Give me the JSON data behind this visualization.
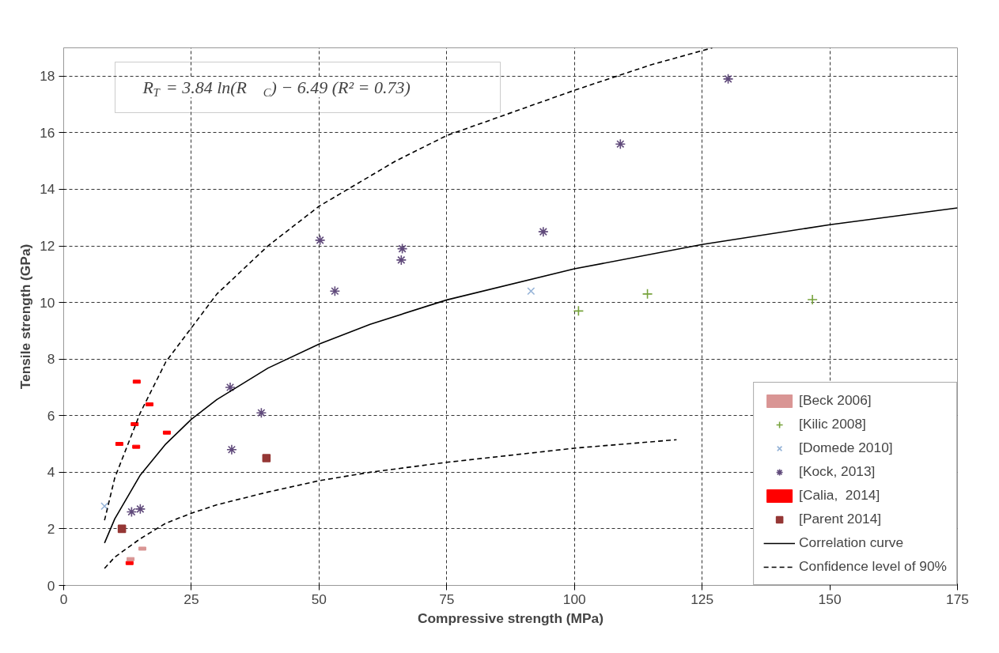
{
  "chart_data": {
    "type": "scatter",
    "xlabel": "Compressive strength (MPa)",
    "ylabel": "Tensile strength (GPa)",
    "xlim": [
      0,
      175
    ],
    "ylim": [
      0,
      19
    ],
    "xticks": [
      0,
      25,
      50,
      75,
      100,
      125,
      150,
      175
    ],
    "yticks": [
      0,
      2,
      4,
      6,
      8,
      10,
      12,
      14,
      16,
      18
    ],
    "grid": true,
    "legend": "bottom right",
    "annotations": [
      "R$_{T}$ = 3.84 ln(R$_{C}$) − 6.49    (R² = 0.73)"
    ],
    "series": [
      {
        "name": "[Beck 2006]",
        "color": "#d99594",
        "x": [
          13.1,
          15.4
        ],
        "values": [
          0.93,
          1.3
        ]
      },
      {
        "name": "[Kilic 2008]",
        "marker": "cross",
        "color": "#77a33c",
        "x": [
          100.8,
          114.3,
          146.6
        ],
        "values": [
          9.7,
          10.3,
          10.1
        ]
      },
      {
        "name": "[Domede 2010]",
        "color": "#95b3d7",
        "x": [
          8.0,
          91.5
        ],
        "values": [
          2.8,
          10.4
        ]
      },
      {
        "name": "[Kock, 2013]",
        "color": "#604a7b",
        "x": [
          13.3,
          15.0,
          32.6,
          38.7,
          32.9,
          50.2,
          53.1,
          66.3,
          66.1,
          93.9,
          109.0,
          130.1
        ],
        "values": [
          2.6,
          2.7,
          7.0,
          6.1,
          4.8,
          12.2,
          10.4,
          11.9,
          11.5,
          12.5,
          15.6,
          17.9
        ]
      },
      {
        "name": "[Calia,  2014]",
        "color": "#ff0000",
        "x": [
          12.9,
          14.3,
          16.8,
          13.9,
          20.2,
          10.9,
          14.2
        ],
        "values": [
          0.79,
          7.2,
          6.4,
          5.7,
          5.4,
          5.0,
          4.9
        ]
      },
      {
        "name": "[Parent 2014]",
        "marker": "square",
        "color": "#953735",
        "x": [
          11.4,
          39.7
        ],
        "values": [
          2.0,
          4.5
        ]
      },
      {
        "name": "Correlation curve",
        "type": "line",
        "line_style": "solid",
        "color": "#000000",
        "x": [
          8,
          10,
          15,
          20,
          25,
          30,
          40,
          50,
          60,
          75,
          100,
          125,
          150,
          175
        ],
        "values": [
          1.5,
          2.35,
          3.9,
          5.0,
          5.87,
          6.57,
          7.68,
          8.53,
          9.23,
          10.09,
          11.19,
          12.05,
          12.75,
          13.34
        ]
      },
      {
        "name": "Confidence level of 90%",
        "type": "line",
        "line_style": "dashed",
        "color": "#000000",
        "x": [
          8,
          10,
          15,
          20,
          30,
          40,
          50,
          65,
          75,
          100,
          115,
          127
        ],
        "values": [
          2.3,
          3.8,
          6.1,
          7.9,
          10.3,
          12.0,
          13.4,
          15.0,
          15.9,
          17.5,
          18.4,
          19.0
        ]
      },
      {
        "type": "line",
        "line_style": "dashed",
        "color": "#000000",
        "x": [
          8,
          10,
          15,
          20,
          25,
          30,
          40,
          50,
          60,
          75,
          100,
          120
        ],
        "values": [
          0.6,
          1.0,
          1.65,
          2.2,
          2.55,
          2.85,
          3.3,
          3.7,
          4.0,
          4.35,
          4.85,
          5.15
        ]
      }
    ]
  }
}
